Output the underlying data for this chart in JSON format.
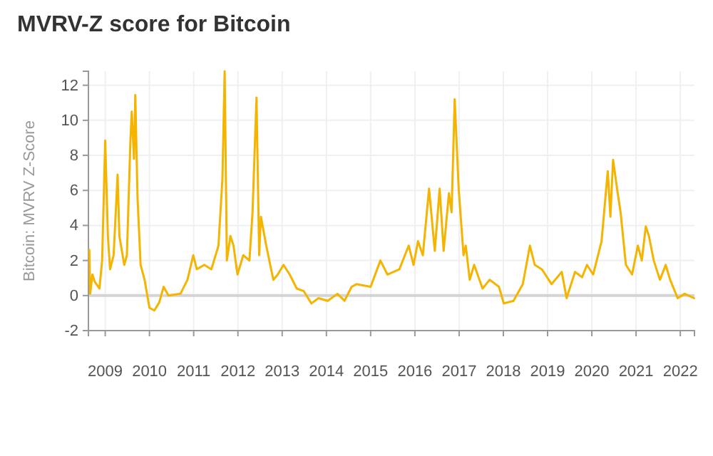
{
  "chart_data": {
    "type": "line",
    "title": "MVRV-Z score for Bitcoin",
    "ylabel": "Bitcoin: MVRV Z-Score",
    "xlim": [
      2008.62,
      2022.32
    ],
    "xticks": [
      2009,
      2010,
      2011,
      2012,
      2013,
      2014,
      2015,
      2016,
      2017,
      2018,
      2019,
      2020,
      2021,
      2022
    ],
    "ylim": [
      -2,
      12.8
    ],
    "yticks": [
      -2,
      0,
      2,
      4,
      6,
      8,
      10,
      12
    ],
    "grid": true,
    "marker": "none",
    "line_style": "solid",
    "ref_lines": [
      {
        "axis": "y",
        "value": 0,
        "color": "#d4d4d4"
      }
    ],
    "series": [
      {
        "color": "#f4b400",
        "x": [
          2008.64,
          2008.66,
          2008.71,
          2008.76,
          2008.87,
          2008.93,
          2009.0,
          2009.06,
          2009.11,
          2009.19,
          2009.28,
          2009.32,
          2009.43,
          2009.49,
          2009.57,
          2009.6,
          2009.65,
          2009.68,
          2009.73,
          2009.8,
          2009.89,
          2010.0,
          2010.11,
          2010.22,
          2010.32,
          2010.43,
          2010.7,
          2010.86,
          2010.99,
          2011.07,
          2011.24,
          2011.4,
          2011.56,
          2011.65,
          2011.7,
          2011.75,
          2011.83,
          2011.9,
          2011.99,
          2012.12,
          2012.26,
          2012.33,
          2012.42,
          2012.48,
          2012.52,
          2012.64,
          2012.8,
          2012.9,
          2013.03,
          2013.17,
          2013.33,
          2013.49,
          2013.66,
          2013.82,
          2014.03,
          2014.25,
          2014.41,
          2014.57,
          2014.68,
          2015.0,
          2015.22,
          2015.38,
          2015.65,
          2015.86,
          2015.97,
          2016.07,
          2016.18,
          2016.32,
          2016.45,
          2016.56,
          2016.65,
          2016.77,
          2016.83,
          2016.9,
          2016.99,
          2017.1,
          2017.15,
          2017.24,
          2017.34,
          2017.53,
          2017.69,
          2017.9,
          2018.01,
          2018.23,
          2018.44,
          2018.6,
          2018.71,
          2018.87,
          2019.09,
          2019.32,
          2019.43,
          2019.62,
          2019.78,
          2019.89,
          2020.03,
          2020.22,
          2020.36,
          2020.42,
          2020.48,
          2020.57,
          2020.65,
          2020.77,
          2020.91,
          2021.04,
          2021.13,
          2021.22,
          2021.29,
          2021.4,
          2021.54,
          2021.67,
          2021.77,
          2021.94,
          2022.1,
          2022.31
        ],
        "values": [
          2.6,
          0.1,
          1.2,
          0.8,
          0.4,
          2,
          8.85,
          3.4,
          1.5,
          2.3,
          6.9,
          3.4,
          1.75,
          2.3,
          8.85,
          10.5,
          7.8,
          11.45,
          5.6,
          1.75,
          0.9,
          -0.7,
          -0.85,
          -0.4,
          0.5,
          0,
          0.1,
          0.9,
          2.3,
          1.5,
          1.75,
          1.5,
          2.85,
          6.7,
          12.8,
          2,
          3.4,
          2.85,
          1.2,
          2.3,
          2,
          4.75,
          11.3,
          2.3,
          4.5,
          2.85,
          0.9,
          1.2,
          1.75,
          1.2,
          0.4,
          0.25,
          -0.45,
          -0.15,
          -0.3,
          0.1,
          -0.3,
          0.5,
          0.65,
          0.5,
          2,
          1.2,
          1.5,
          2.85,
          1.75,
          3.1,
          2.3,
          6.1,
          2.55,
          6.1,
          2.55,
          5.85,
          4.75,
          11.2,
          6.1,
          2.3,
          2.85,
          0.9,
          1.75,
          0.4,
          0.9,
          0.5,
          -0.45,
          -0.3,
          0.65,
          2.85,
          1.75,
          1.5,
          0.65,
          1.35,
          -0.15,
          1.35,
          1.05,
          1.75,
          1.2,
          3.1,
          7.1,
          4.5,
          7.75,
          6.1,
          4.75,
          1.75,
          1.2,
          2.85,
          2,
          3.95,
          3.4,
          2,
          0.9,
          1.75,
          0.9,
          -0.15,
          0.1,
          -0.15
        ]
      }
    ]
  }
}
